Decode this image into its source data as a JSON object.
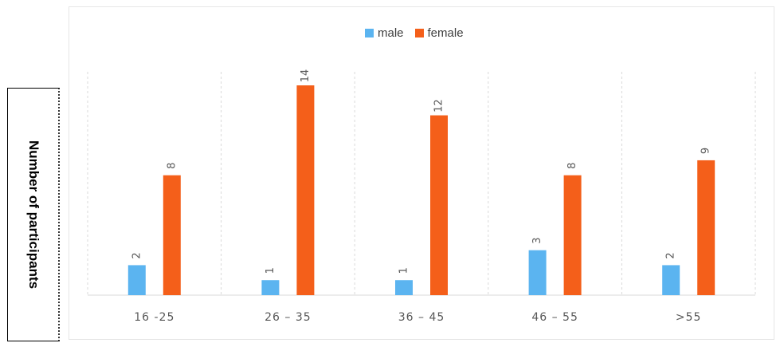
{
  "chart_data": {
    "type": "bar",
    "title": "",
    "xlabel": "",
    "ylabel": "Number of participants",
    "categories": [
      "16 -25",
      "26 – 35",
      "36 – 45",
      "46 – 55",
      ">55"
    ],
    "series": [
      {
        "name": "male",
        "color": "#5bb4f0",
        "values": [
          2,
          1,
          1,
          3,
          2
        ]
      },
      {
        "name": "female",
        "color": "#f45f1a",
        "values": [
          8,
          14,
          12,
          8,
          9
        ]
      }
    ],
    "ylim": [
      0,
      15
    ],
    "legend_position": "top-center",
    "grid": "vertical dashed separators"
  }
}
